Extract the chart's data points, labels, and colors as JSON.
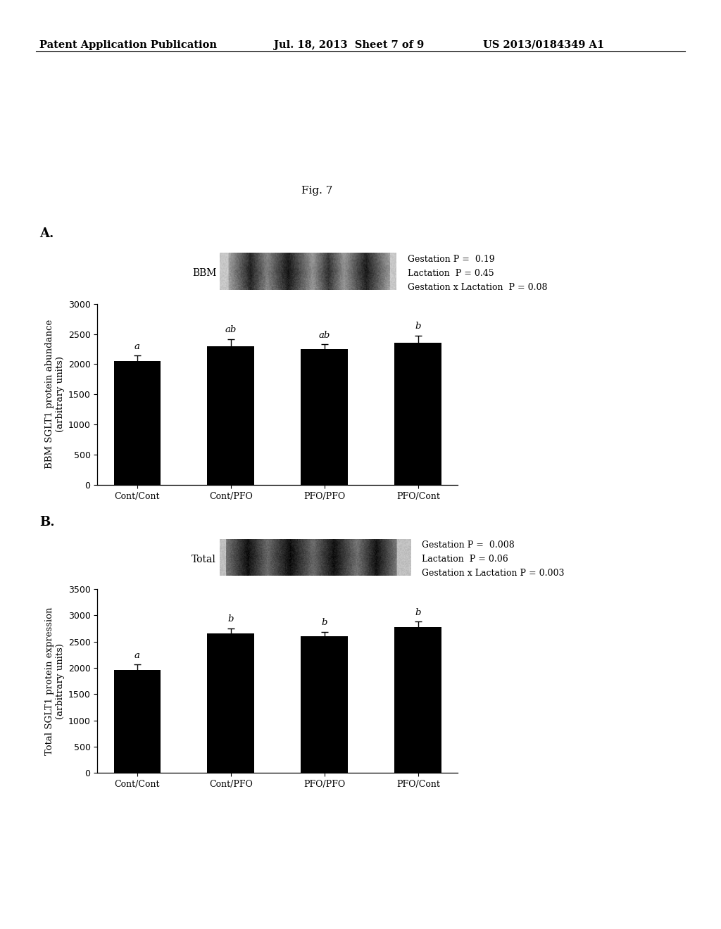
{
  "header_left": "Patent Application Publication",
  "header_mid": "Jul. 18, 2013  Sheet 7 of 9",
  "header_right": "US 2013/0184349 A1",
  "fig_label": "Fig. 7",
  "panel_A_label": "A.",
  "panel_B_label": "B.",
  "panel_A": {
    "blot_label": "BBM",
    "stats_lines": [
      "Gestation P =  0.19",
      "Lactation  P = 0.45",
      "Gestation x Lactation  P = 0.08"
    ],
    "categories": [
      "Cont/Cont",
      "Cont/PFO",
      "PFO/PFO",
      "PFO/Cont"
    ],
    "values": [
      2050,
      2300,
      2245,
      2360
    ],
    "errors": [
      90,
      115,
      85,
      115
    ],
    "letters": [
      "a",
      "ab",
      "ab",
      "b"
    ],
    "ylabel_line1": "BBM SGLT1 protein abundance",
    "ylabel_line2": "(arbitrary units)",
    "ylim": [
      0,
      3000
    ],
    "yticks": [
      0,
      500,
      1000,
      1500,
      2000,
      2500,
      3000
    ]
  },
  "panel_B": {
    "blot_label": "Total",
    "stats_lines": [
      "Gestation P =  0.008",
      "Lactation  P = 0.06",
      "Gestation x Lactation P = 0.003"
    ],
    "categories": [
      "Cont/Cont",
      "Cont/PFO",
      "PFO/PFO",
      "PFO/Cont"
    ],
    "values": [
      1960,
      2650,
      2600,
      2780
    ],
    "errors": [
      100,
      100,
      85,
      100
    ],
    "letters": [
      "a",
      "b",
      "b",
      "b"
    ],
    "ylabel_line1": "Total SGLT1 protein expression",
    "ylabel_line2": "(arbitrary units)",
    "ylim": [
      0,
      3500
    ],
    "yticks": [
      0,
      500,
      1000,
      1500,
      2000,
      2500,
      3000,
      3500
    ]
  },
  "bar_color": "#000000",
  "bar_width": 0.5,
  "background_color": "#ffffff",
  "font_size_header": 10.5,
  "font_size_figlabel": 11,
  "font_size_panellabel": 13,
  "font_size_blotlabel": 10,
  "font_size_ylabel": 9.5,
  "font_size_tick": 9,
  "font_size_stats": 9,
  "font_size_letter": 9.5
}
